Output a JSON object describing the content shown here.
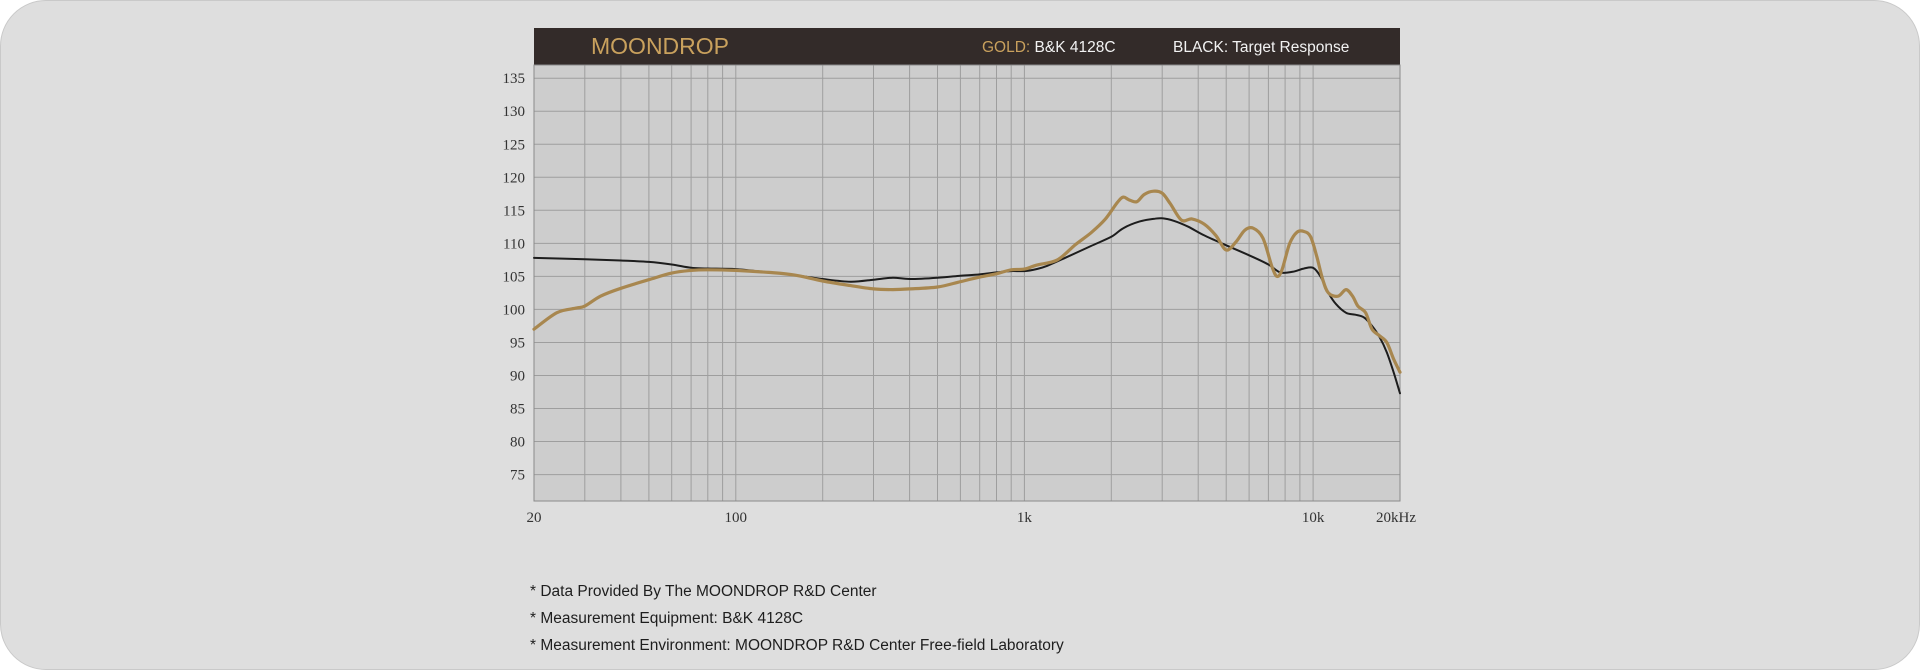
{
  "header": {
    "brand": "MOONDROP",
    "gold_key": "GOLD:",
    "gold_value": " B&K 4128C",
    "black_key": "BLACK:",
    "black_value": " Target Response"
  },
  "notes": [
    "* Data Provided By The MOONDROP R&D Center",
    "* Measurement Equipment: B&K 4128C",
    "* Measurement Environment: MOONDROP R&D Center Free-field Laboratory"
  ],
  "colors": {
    "card_bg": "#dedede",
    "plot_bg": "#cdcdcd",
    "header_bg": "#332b29",
    "grid": "#9e9e9e",
    "gold": "#a8874f",
    "black": "#1d1d1d",
    "brand_text": "#c9a15d"
  },
  "chart_data": {
    "type": "line",
    "title": "",
    "xlabel": "",
    "ylabel": "",
    "x_scale": "log",
    "xlim": [
      20,
      20000
    ],
    "ylim": [
      71,
      137
    ],
    "grid": true,
    "x_ticks": [
      {
        "value": 20,
        "label": "20"
      },
      {
        "value": 100,
        "label": "100"
      },
      {
        "value": 1000,
        "label": "1k"
      },
      {
        "value": 10000,
        "label": "10k"
      },
      {
        "value": 20000,
        "label": "20kHz"
      }
    ],
    "y_ticks": [
      135,
      130,
      125,
      120,
      115,
      110,
      105,
      100,
      95,
      90,
      85,
      80,
      75
    ],
    "series": [
      {
        "name": "B&K 4128C",
        "color": "#a8874f",
        "points": [
          [
            20,
            97
          ],
          [
            24,
            99.5
          ],
          [
            28,
            100.2
          ],
          [
            30,
            100.5
          ],
          [
            34,
            102
          ],
          [
            40,
            103.2
          ],
          [
            50,
            104.5
          ],
          [
            60,
            105.5
          ],
          [
            70,
            105.9
          ],
          [
            80,
            106
          ],
          [
            100,
            105.9
          ],
          [
            130,
            105.6
          ],
          [
            160,
            105.2
          ],
          [
            200,
            104.3
          ],
          [
            250,
            103.6
          ],
          [
            300,
            103.1
          ],
          [
            350,
            103
          ],
          [
            400,
            103.1
          ],
          [
            500,
            103.4
          ],
          [
            600,
            104.2
          ],
          [
            700,
            104.9
          ],
          [
            800,
            105.4
          ],
          [
            900,
            106
          ],
          [
            1000,
            106.1
          ],
          [
            1100,
            106.7
          ],
          [
            1300,
            107.5
          ],
          [
            1500,
            109.8
          ],
          [
            1700,
            111.6
          ],
          [
            1900,
            113.6
          ],
          [
            2100,
            116.2
          ],
          [
            2200,
            117
          ],
          [
            2300,
            116.6
          ],
          [
            2450,
            116.3
          ],
          [
            2600,
            117.4
          ],
          [
            2800,
            117.9
          ],
          [
            3000,
            117.6
          ],
          [
            3200,
            116
          ],
          [
            3500,
            113.5
          ],
          [
            3800,
            113.7
          ],
          [
            4200,
            112.9
          ],
          [
            4600,
            111.2
          ],
          [
            5000,
            109
          ],
          [
            5400,
            110.2
          ],
          [
            5800,
            112
          ],
          [
            6200,
            112.3
          ],
          [
            6700,
            110.8
          ],
          [
            7200,
            106.5
          ],
          [
            7500,
            105
          ],
          [
            7800,
            106
          ],
          [
            8300,
            110
          ],
          [
            8800,
            111.7
          ],
          [
            9300,
            111.8
          ],
          [
            9800,
            111
          ],
          [
            10300,
            108
          ],
          [
            10800,
            104.5
          ],
          [
            11300,
            102.5
          ],
          [
            12200,
            102
          ],
          [
            13000,
            103
          ],
          [
            13700,
            102
          ],
          [
            14300,
            100.5
          ],
          [
            15200,
            99.5
          ],
          [
            16000,
            97
          ],
          [
            17000,
            96
          ],
          [
            18000,
            95
          ],
          [
            19000,
            92.5
          ],
          [
            20000,
            90.5
          ]
        ]
      },
      {
        "name": "Target Response",
        "color": "#1d1d1d",
        "points": [
          [
            20,
            107.8
          ],
          [
            30,
            107.6
          ],
          [
            40,
            107.4
          ],
          [
            50,
            107.2
          ],
          [
            60,
            106.8
          ],
          [
            70,
            106.3
          ],
          [
            80,
            106.2
          ],
          [
            100,
            106.1
          ],
          [
            130,
            105.6
          ],
          [
            160,
            105.2
          ],
          [
            200,
            104.6
          ],
          [
            250,
            104.2
          ],
          [
            300,
            104.5
          ],
          [
            350,
            104.8
          ],
          [
            400,
            104.6
          ],
          [
            500,
            104.8
          ],
          [
            600,
            105.1
          ],
          [
            700,
            105.3
          ],
          [
            800,
            105.6
          ],
          [
            900,
            105.8
          ],
          [
            1000,
            105.8
          ],
          [
            1100,
            106.1
          ],
          [
            1200,
            106.6
          ],
          [
            1400,
            107.9
          ],
          [
            1700,
            109.6
          ],
          [
            2000,
            111
          ],
          [
            2200,
            112.3
          ],
          [
            2500,
            113.3
          ],
          [
            2800,
            113.7
          ],
          [
            3000,
            113.8
          ],
          [
            3300,
            113.4
          ],
          [
            3700,
            112.5
          ],
          [
            4200,
            111.2
          ],
          [
            5000,
            109.7
          ],
          [
            6000,
            108.2
          ],
          [
            7000,
            106.8
          ],
          [
            7700,
            105.6
          ],
          [
            8500,
            105.7
          ],
          [
            9300,
            106.2
          ],
          [
            10000,
            106.3
          ],
          [
            10600,
            105
          ],
          [
            11300,
            102.5
          ],
          [
            12000,
            100.8
          ],
          [
            13000,
            99.5
          ],
          [
            14000,
            99.2
          ],
          [
            15000,
            98.8
          ],
          [
            16000,
            97.5
          ],
          [
            17000,
            95.8
          ],
          [
            18000,
            93.5
          ],
          [
            19000,
            90.5
          ],
          [
            20000,
            87.3
          ]
        ]
      }
    ]
  }
}
